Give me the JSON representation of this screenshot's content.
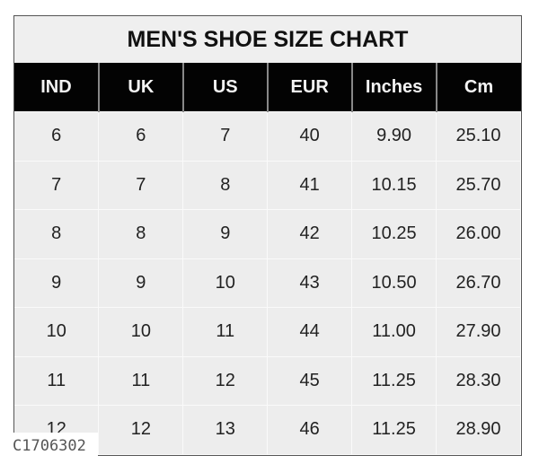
{
  "title": "MEN'S SHOE SIZE CHART",
  "columns": [
    "IND",
    "UK",
    "US",
    "EUR",
    "Inches",
    "Cm"
  ],
  "rows": [
    [
      "6",
      "6",
      "7",
      "40",
      "9.90",
      "25.10"
    ],
    [
      "7",
      "7",
      "8",
      "41",
      "10.15",
      "25.70"
    ],
    [
      "8",
      "8",
      "9",
      "42",
      "10.25",
      "26.00"
    ],
    [
      "9",
      "9",
      "10",
      "43",
      "10.50",
      "26.70"
    ],
    [
      "10",
      "10",
      "11",
      "44",
      "11.00",
      "27.90"
    ],
    [
      "11",
      "11",
      "12",
      "45",
      "11.25",
      "28.30"
    ],
    [
      "12",
      "12",
      "13",
      "46",
      "11.25",
      "28.90"
    ]
  ],
  "product_code": "C1706302"
}
